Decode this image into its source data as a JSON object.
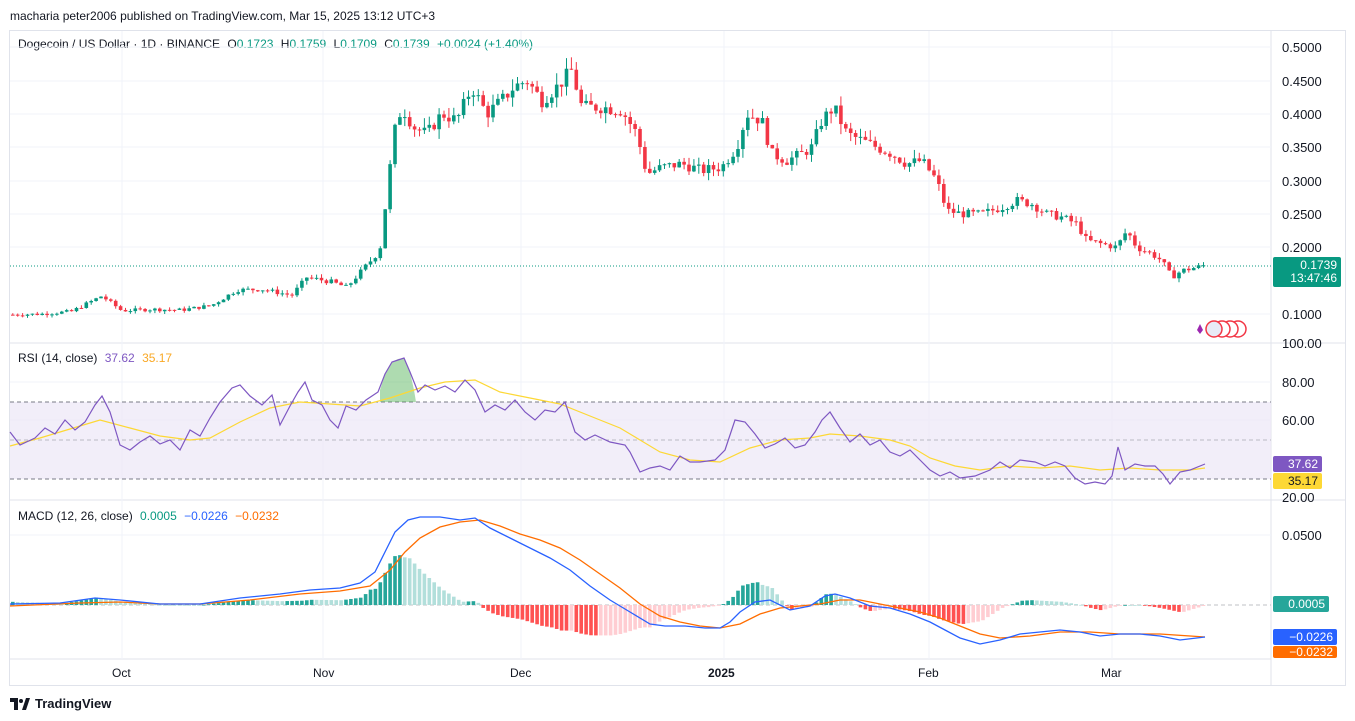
{
  "header": {
    "published": "macharia peter2006 published on TradingView.com, Mar 15, 2025 13:12 UTC+3"
  },
  "symbol": {
    "name": "Dogecoin / US Dollar · 1D · BINANCE",
    "o_label": "O",
    "o": "0.1723",
    "h_label": "H",
    "h": "0.1759",
    "l_label": "L",
    "l": "0.1709",
    "c_label": "C",
    "c": "0.1739",
    "change": "+0.0024 (+1.40%)"
  },
  "price_axis": {
    "labels": [
      "0.5000",
      "0.4500",
      "0.4000",
      "0.3500",
      "0.3000",
      "0.2500",
      "0.2000",
      "0.1000"
    ],
    "last_price": "0.1739",
    "countdown": "13:47:46"
  },
  "rsi": {
    "title": "RSI (14, close)",
    "value": "37.62",
    "ma": "35.17",
    "axis_labels": [
      "100.00",
      "80.00",
      "60.00",
      "20.00"
    ]
  },
  "macd": {
    "title": "MACD (12, 26, close)",
    "hist": "0.0005",
    "macd": "−0.0226",
    "signal": "−0.0232",
    "axis_labels": [
      "0.0500"
    ]
  },
  "time_axis": {
    "labels": [
      "Oct",
      "Nov",
      "Dec",
      "2025",
      "Feb",
      "Mar"
    ]
  },
  "footer": {
    "brand": "TradingView"
  },
  "colors": {
    "up": "#089981",
    "down": "#f23645",
    "rsi": "#7e57c2",
    "rsi_ma": "#fdd835",
    "macd": "#2962ff",
    "signal": "#ff6d00"
  },
  "chart_data": {
    "type": "candlestick",
    "x": [
      "2024-09-01",
      "2024-09-08",
      "2024-09-15",
      "2024-09-22",
      "2024-09-29",
      "2024-10-06",
      "2024-10-13",
      "2024-10-20",
      "2024-10-27",
      "2024-11-03",
      "2024-11-10",
      "2024-11-17",
      "2024-11-24",
      "2024-12-01",
      "2024-12-08",
      "2024-12-15",
      "2024-12-22",
      "2024-12-29",
      "2025-01-05",
      "2025-01-12",
      "2025-01-19",
      "2025-01-26",
      "2025-02-02",
      "2025-02-09",
      "2025-02-16",
      "2025-02-23",
      "2025-03-02",
      "2025-03-09",
      "2025-03-15"
    ],
    "close": [
      0.098,
      0.103,
      0.11,
      0.13,
      0.108,
      0.11,
      0.13,
      0.14,
      0.165,
      0.19,
      0.38,
      0.39,
      0.41,
      0.43,
      0.4,
      0.33,
      0.32,
      0.33,
      0.37,
      0.35,
      0.4,
      0.34,
      0.28,
      0.25,
      0.26,
      0.21,
      0.2,
      0.17,
      0.1739
    ],
    "ylim": [
      0.08,
      0.51
    ]
  }
}
